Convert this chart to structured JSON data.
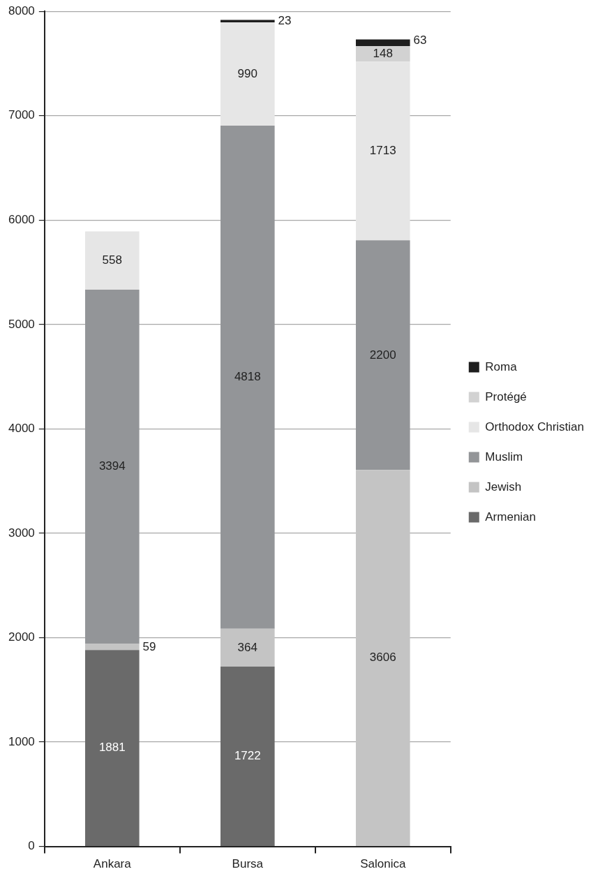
{
  "chart_data": {
    "type": "bar",
    "stacked": true,
    "categories": [
      "Ankara",
      "Bursa",
      "Salonica"
    ],
    "series": [
      {
        "name": "Armenian",
        "color": "#6a6a6a",
        "values": [
          1881,
          1722,
          null
        ]
      },
      {
        "name": "Jewish",
        "color": "#c4c4c4",
        "values": [
          59,
          364,
          3606
        ]
      },
      {
        "name": "Muslim",
        "color": "#939598",
        "values": [
          3394,
          4818,
          2200
        ]
      },
      {
        "name": "Orthodox Christian",
        "color": "#e6e6e6",
        "values": [
          558,
          990,
          1713
        ]
      },
      {
        "name": "Protégé",
        "color": "#d2d2d2",
        "values": [
          null,
          null,
          148
        ]
      },
      {
        "name": "Roma",
        "color": "#1e1e1e",
        "values": [
          null,
          23,
          63
        ]
      }
    ],
    "ylim": [
      0,
      8000
    ],
    "yticks": [
      0,
      1000,
      2000,
      3000,
      4000,
      5000,
      6000,
      7000,
      8000
    ],
    "grid": "y",
    "legend": "right",
    "data_labels": true
  }
}
